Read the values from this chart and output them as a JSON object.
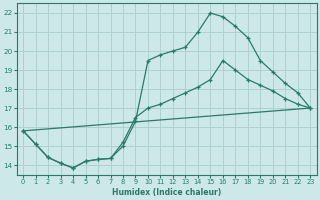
{
  "xlabel": "Humidex (Indice chaleur)",
  "xlim": [
    -0.5,
    23.5
  ],
  "ylim": [
    13.5,
    22.5
  ],
  "xticks": [
    0,
    1,
    2,
    3,
    4,
    5,
    6,
    7,
    8,
    9,
    10,
    11,
    12,
    13,
    14,
    15,
    16,
    17,
    18,
    19,
    20,
    21,
    22,
    23
  ],
  "yticks": [
    14,
    15,
    16,
    17,
    18,
    19,
    20,
    21,
    22
  ],
  "bg_color": "#cce8e8",
  "grid_color": "#b0d0d0",
  "line_color": "#2a7a6a",
  "line1_x": [
    0,
    1,
    2,
    3,
    4,
    5,
    6,
    7,
    8,
    9,
    10,
    11,
    12,
    13,
    14,
    15,
    16,
    17,
    18,
    19,
    20,
    21,
    22,
    23
  ],
  "line1_y": [
    15.8,
    15.1,
    14.4,
    14.1,
    13.85,
    14.2,
    14.3,
    14.35,
    15.0,
    16.3,
    19.5,
    19.8,
    20.0,
    20.2,
    21.0,
    22.0,
    21.8,
    21.3,
    20.7,
    19.5,
    18.9,
    18.3,
    17.8,
    17.0
  ],
  "line2_x": [
    0,
    1,
    2,
    3,
    4,
    5,
    6,
    7,
    8,
    9,
    10,
    11,
    12,
    13,
    14,
    15,
    16,
    17,
    18,
    19,
    20,
    21,
    22,
    23
  ],
  "line2_y": [
    15.8,
    15.1,
    14.4,
    14.1,
    13.85,
    14.2,
    14.3,
    14.35,
    15.2,
    16.5,
    17.0,
    17.2,
    17.5,
    17.8,
    18.1,
    18.5,
    19.5,
    19.0,
    18.5,
    18.2,
    17.9,
    17.5,
    17.2,
    17.0
  ],
  "line3_x": [
    0,
    23
  ],
  "line3_y": [
    15.8,
    17.0
  ]
}
